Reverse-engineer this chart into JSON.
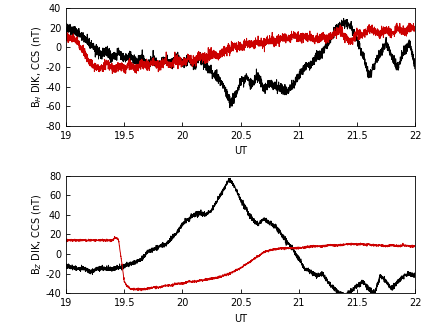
{
  "xlim": [
    19,
    22
  ],
  "xticks": [
    19,
    19.5,
    20,
    20.5,
    21,
    21.5,
    22
  ],
  "xlabel": "UT",
  "bh_ylim": [
    -80,
    40
  ],
  "bh_yticks": [
    -80,
    -60,
    -40,
    -20,
    0,
    20,
    40
  ],
  "bh_ylabel": "B$_H$ DIK, CCS (nT)",
  "bz_ylim": [
    -40,
    80
  ],
  "bz_yticks": [
    -40,
    -20,
    0,
    20,
    40,
    60,
    80
  ],
  "bz_ylabel": "B$_Z$ DIK, CCS (nT)",
  "line_color_black": "#000000",
  "line_color_red": "#cc0000",
  "background_color": "#ffffff",
  "linewidth": 0.7
}
